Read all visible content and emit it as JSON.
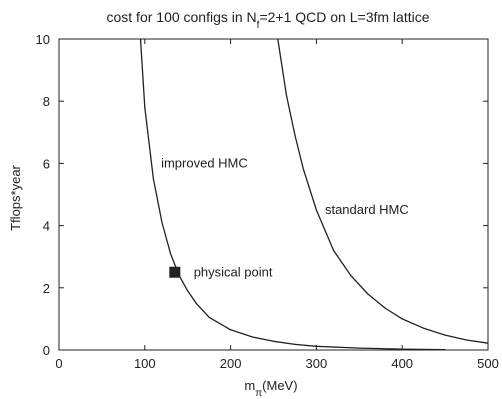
{
  "chart_data": {
    "type": "line",
    "title": {
      "prefix": "cost for 100 configs in N",
      "subscript": "f",
      "suffix": "=2+1 QCD on L=3fm lattice"
    },
    "xlabel": {
      "main": "m",
      "subscript": "π",
      "unit": "(MeV)"
    },
    "ylabel": "Tflops*year",
    "xlim": [
      0,
      500
    ],
    "ylim": [
      0,
      10
    ],
    "x_ticks": [
      "0",
      "100",
      "200",
      "300",
      "400",
      "500"
    ],
    "y_ticks": [
      "0",
      "2",
      "4",
      "6",
      "8",
      "10"
    ],
    "grid": false,
    "series": [
      {
        "name": "improved HMC",
        "color": "#222222",
        "points": [
          [
            95,
            10.0
          ],
          [
            100,
            7.8
          ],
          [
            110,
            5.5
          ],
          [
            120,
            4.1
          ],
          [
            130,
            3.1
          ],
          [
            140,
            2.4
          ],
          [
            150,
            1.9
          ],
          [
            160,
            1.5
          ],
          [
            175,
            1.05
          ],
          [
            200,
            0.65
          ],
          [
            225,
            0.42
          ],
          [
            250,
            0.28
          ],
          [
            275,
            0.18
          ],
          [
            300,
            0.12
          ],
          [
            350,
            0.06
          ],
          [
            400,
            0.03
          ],
          [
            450,
            0.01
          ]
        ]
      },
      {
        "name": "standard HMC",
        "color": "#222222",
        "points": [
          [
            255,
            10.0
          ],
          [
            265,
            8.2
          ],
          [
            275,
            6.9
          ],
          [
            285,
            5.8
          ],
          [
            300,
            4.5
          ],
          [
            320,
            3.2
          ],
          [
            340,
            2.4
          ],
          [
            360,
            1.8
          ],
          [
            380,
            1.35
          ],
          [
            400,
            1.0
          ],
          [
            425,
            0.7
          ],
          [
            450,
            0.48
          ],
          [
            475,
            0.32
          ],
          [
            500,
            0.22
          ]
        ]
      }
    ],
    "annotations": [
      {
        "text": "improved HMC",
        "x": 119,
        "y": 6.0
      },
      {
        "text": "standard HMC",
        "x": 310,
        "y": 4.5
      },
      {
        "text": "physical point",
        "x": 157,
        "y": 2.5
      }
    ],
    "markers": [
      {
        "name": "physical point",
        "x": 135,
        "y": 2.5,
        "shape": "square",
        "color": "#222222"
      }
    ]
  }
}
